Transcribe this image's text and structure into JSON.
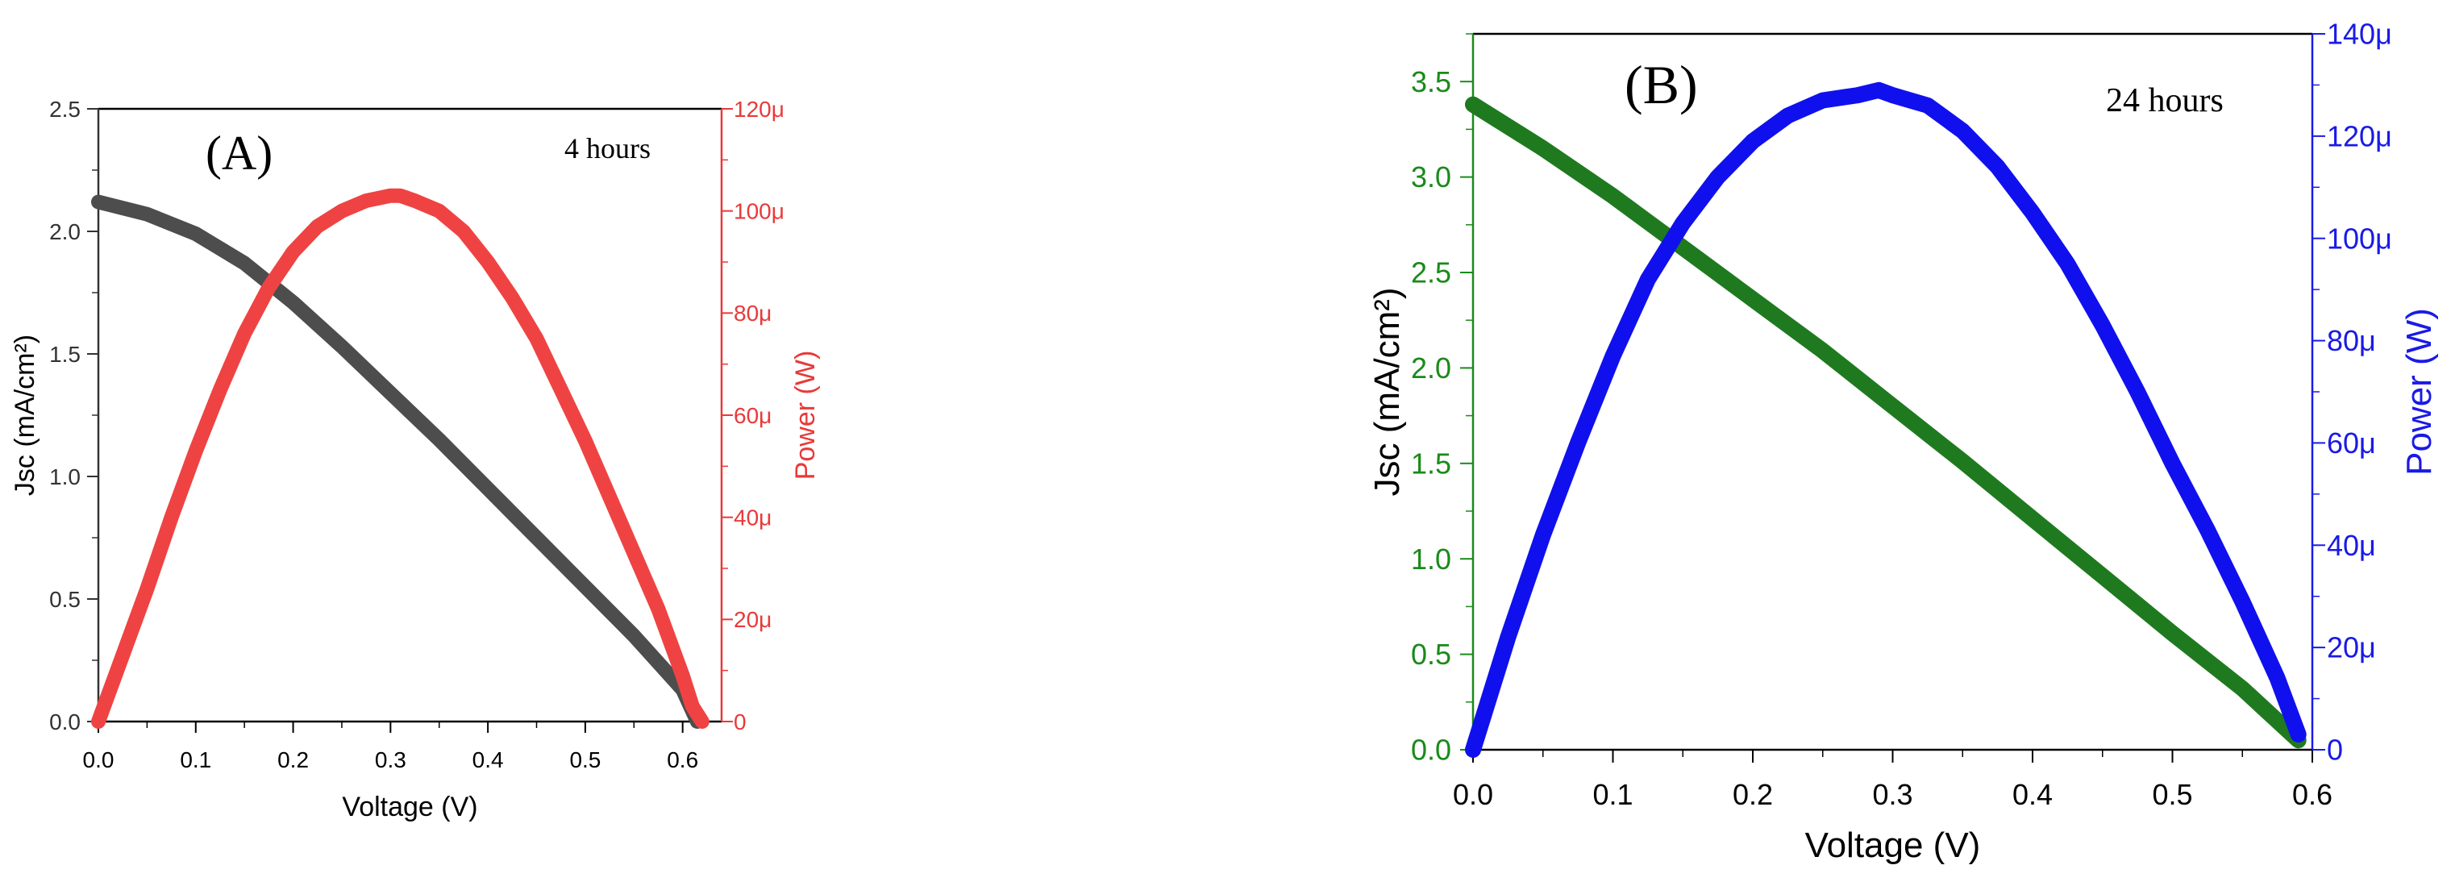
{
  "chart_data": [
    {
      "panel_label": "(A)",
      "annotation": "4 hours",
      "type": "line",
      "xlabel": "Voltage (V)",
      "ylabel_left": "Jsc (mA/cm²)",
      "ylabel_right": "Power (W)",
      "xlim": [
        0,
        0.64
      ],
      "ylim_left": [
        0,
        2.5
      ],
      "ylim_right": [
        0,
        0.00012
      ],
      "x_ticks": [
        "0.0",
        "0.1",
        "0.2",
        "0.3",
        "0.4",
        "0.5",
        "0.6"
      ],
      "y_left_ticks": [
        "0.0",
        "0.5",
        "1.0",
        "1.5",
        "2.0",
        "2.5"
      ],
      "y_right_ticks": [
        "0",
        "20μ",
        "40μ",
        "60μ",
        "80μ",
        "100μ",
        "120μ"
      ],
      "left_axis_color": "#333333",
      "right_axis_color": "#e83a3a",
      "grid": false,
      "series": [
        {
          "axis": "left",
          "color": "#4d4d4d",
          "x": [
            0.0,
            0.05,
            0.1,
            0.15,
            0.2,
            0.25,
            0.3,
            0.35,
            0.4,
            0.45,
            0.5,
            0.55,
            0.6,
            0.615
          ],
          "y": [
            2.12,
            2.07,
            1.99,
            1.87,
            1.71,
            1.53,
            1.34,
            1.15,
            0.95,
            0.75,
            0.55,
            0.35,
            0.13,
            0.0
          ]
        },
        {
          "axis": "right",
          "color": "#ef4343",
          "x": [
            0.0,
            0.025,
            0.05,
            0.075,
            0.1,
            0.125,
            0.15,
            0.175,
            0.2,
            0.225,
            0.25,
            0.275,
            0.3,
            0.31,
            0.325,
            0.35,
            0.375,
            0.4,
            0.425,
            0.45,
            0.475,
            0.5,
            0.525,
            0.55,
            0.575,
            0.6,
            0.61,
            0.62
          ],
          "y": [
            0,
            1.3e-05,
            2.6e-05,
            4e-05,
            5.3e-05,
            6.5e-05,
            7.6e-05,
            8.5e-05,
            9.2e-05,
            9.7e-05,
            0.0001,
            0.000102,
            0.000103,
            0.000103,
            0.000102,
            0.0001,
            9.6e-05,
            9e-05,
            8.3e-05,
            7.5e-05,
            6.5e-05,
            5.5e-05,
            4.4e-05,
            3.3e-05,
            2.2e-05,
            9e-06,
            3e-06,
            0
          ]
        }
      ]
    },
    {
      "panel_label": "(B)",
      "annotation": "24 hours",
      "type": "line",
      "xlabel": "Voltage (V)",
      "ylabel_left": "Jsc (mA/cm²)",
      "ylabel_right": "Power (W)",
      "xlim": [
        0,
        0.6
      ],
      "ylim_left": [
        0,
        3.75
      ],
      "ylim_right": [
        0,
        0.00014
      ],
      "x_ticks": [
        "0.0",
        "0.1",
        "0.2",
        "0.3",
        "0.4",
        "0.5",
        "0.6"
      ],
      "y_left_ticks": [
        "0.0",
        "0.5",
        "1.0",
        "1.5",
        "2.0",
        "2.5",
        "3.0",
        "3.5"
      ],
      "y_right_ticks": [
        "0",
        "20μ",
        "40μ",
        "60μ",
        "80μ",
        "100μ",
        "120μ",
        "140μ"
      ],
      "left_axis_color": "#1a8a1a",
      "right_axis_color": "#1a1ae6",
      "grid": false,
      "series": [
        {
          "axis": "left",
          "color": "#1f7a1f",
          "x": [
            0.0,
            0.05,
            0.1,
            0.15,
            0.2,
            0.25,
            0.3,
            0.35,
            0.4,
            0.45,
            0.5,
            0.55,
            0.59
          ],
          "y": [
            3.38,
            3.15,
            2.9,
            2.63,
            2.36,
            2.09,
            1.8,
            1.51,
            1.21,
            0.91,
            0.61,
            0.32,
            0.05
          ]
        },
        {
          "axis": "right",
          "color": "#1010ee",
          "x": [
            0.0,
            0.025,
            0.05,
            0.075,
            0.1,
            0.125,
            0.15,
            0.175,
            0.2,
            0.225,
            0.25,
            0.275,
            0.29,
            0.3,
            0.325,
            0.35,
            0.375,
            0.4,
            0.425,
            0.45,
            0.475,
            0.5,
            0.525,
            0.55,
            0.575,
            0.59
          ],
          "y": [
            0,
            2.2e-05,
            4.2e-05,
            6e-05,
            7.7e-05,
            9.2e-05,
            0.000103,
            0.000112,
            0.000119,
            0.000124,
            0.000127,
            0.000128,
            0.000129,
            0.000128,
            0.000126,
            0.000121,
            0.000114,
            0.000105,
            9.5e-05,
            8.3e-05,
            7e-05,
            5.6e-05,
            4.3e-05,
            2.9e-05,
            1.4e-05,
            3e-06
          ]
        }
      ]
    }
  ]
}
